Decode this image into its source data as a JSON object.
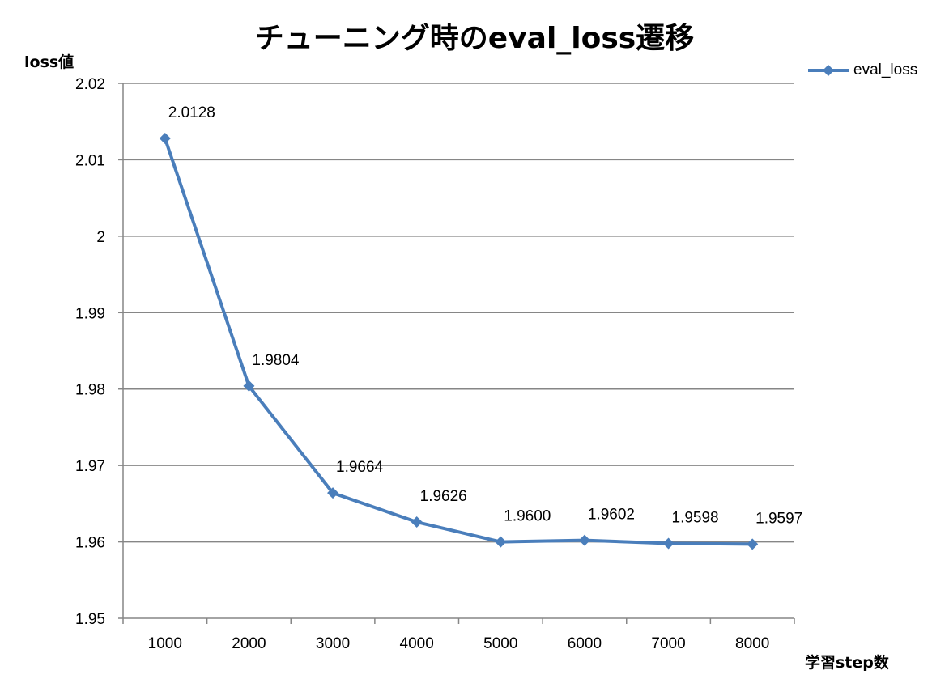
{
  "chart_data": {
    "type": "line",
    "title": "チューニング時のeval_loss遷移",
    "xlabel": "学習step数",
    "ylabel": "loss値",
    "categories": [
      "1000",
      "2000",
      "3000",
      "4000",
      "5000",
      "6000",
      "7000",
      "8000"
    ],
    "series": [
      {
        "name": "eval_loss",
        "values": [
          2.0128,
          1.9804,
          1.9664,
          1.9626,
          1.96,
          1.9602,
          1.9598,
          1.9597
        ],
        "labels": [
          "2.0128",
          "1.9804",
          "1.9664",
          "1.9626",
          "1.9600",
          "1.9602",
          "1.9598",
          "1.9597"
        ],
        "color": "#4a7ebb"
      }
    ],
    "ylim": [
      1.95,
      2.02
    ],
    "yticks": [
      "1.95",
      "1.96",
      "1.97",
      "1.98",
      "1.99",
      "2",
      "2.01",
      "2.02"
    ],
    "grid": true,
    "legend": "right"
  }
}
